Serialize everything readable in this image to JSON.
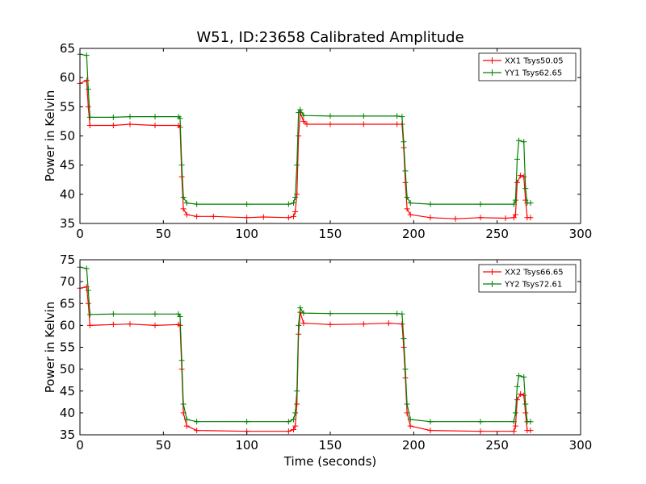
{
  "figure": {
    "title": "W51, ID:23658 Calibrated Amplitude",
    "background": "#ffffff"
  },
  "chart_data": [
    {
      "type": "line",
      "title": "W51, ID:23658 Calibrated Amplitude",
      "xlabel": "",
      "ylabel": "Power in Kelvin",
      "xlim": [
        0,
        300
      ],
      "ylim": [
        35,
        65
      ],
      "xticks": [
        0,
        50,
        100,
        150,
        200,
        250,
        300
      ],
      "yticks": [
        35,
        40,
        45,
        50,
        55,
        60,
        65
      ],
      "grid": false,
      "legend_position": "top-right",
      "marker": "+",
      "series": [
        {
          "name": "XX1 Tsys50.05",
          "color": "#ff0000",
          "points": [
            [
              0,
              59
            ],
            [
              4,
              59.5
            ],
            [
              5,
              55
            ],
            [
              6,
              51.8
            ],
            [
              20,
              51.8
            ],
            [
              30,
              52
            ],
            [
              45,
              51.8
            ],
            [
              59,
              51.8
            ],
            [
              60,
              51.5
            ],
            [
              61,
              43
            ],
            [
              62,
              37.5
            ],
            [
              64,
              36.5
            ],
            [
              70,
              36.2
            ],
            [
              80,
              36.2
            ],
            [
              100,
              36
            ],
            [
              110,
              36.1
            ],
            [
              125,
              36
            ],
            [
              128,
              36.2
            ],
            [
              129,
              37
            ],
            [
              130,
              40
            ],
            [
              131,
              50
            ],
            [
              132,
              54
            ],
            [
              134,
              52.5
            ],
            [
              136,
              52
            ],
            [
              150,
              52
            ],
            [
              170,
              52
            ],
            [
              190,
              52
            ],
            [
              193,
              52
            ],
            [
              194,
              48
            ],
            [
              195,
              42
            ],
            [
              196,
              37.5
            ],
            [
              198,
              36.5
            ],
            [
              210,
              36
            ],
            [
              225,
              35.8
            ],
            [
              240,
              36
            ],
            [
              255,
              35.9
            ],
            [
              260,
              36
            ],
            [
              261,
              36.5
            ],
            [
              262,
              42
            ],
            [
              264,
              43.2
            ],
            [
              266,
              43
            ],
            [
              267,
              39
            ],
            [
              268,
              36
            ],
            [
              270,
              36
            ]
          ]
        },
        {
          "name": "YY1 Tsys62.65",
          "color": "#008000",
          "points": [
            [
              0,
              64
            ],
            [
              4,
              63.8
            ],
            [
              5,
              58
            ],
            [
              6,
              53.2
            ],
            [
              20,
              53.2
            ],
            [
              30,
              53.3
            ],
            [
              45,
              53.3
            ],
            [
              59,
              53.3
            ],
            [
              60,
              53
            ],
            [
              61,
              45
            ],
            [
              62,
              39.5
            ],
            [
              64,
              38.5
            ],
            [
              70,
              38.3
            ],
            [
              100,
              38.3
            ],
            [
              125,
              38.3
            ],
            [
              128,
              38.5
            ],
            [
              129,
              39.5
            ],
            [
              130,
              45
            ],
            [
              131,
              54
            ],
            [
              132,
              54.5
            ],
            [
              134,
              53.5
            ],
            [
              150,
              53.4
            ],
            [
              170,
              53.4
            ],
            [
              190,
              53.4
            ],
            [
              193,
              53.3
            ],
            [
              194,
              49
            ],
            [
              195,
              44
            ],
            [
              196,
              39.5
            ],
            [
              198,
              38.5
            ],
            [
              210,
              38.3
            ],
            [
              240,
              38.3
            ],
            [
              260,
              38.3
            ],
            [
              261,
              39
            ],
            [
              262,
              46
            ],
            [
              263,
              49.2
            ],
            [
              266,
              49
            ],
            [
              267,
              41
            ],
            [
              268,
              38.5
            ],
            [
              270,
              38.5
            ]
          ]
        }
      ]
    },
    {
      "type": "line",
      "title": "",
      "xlabel": "Time (seconds)",
      "ylabel": "Power in Kelvin",
      "xlim": [
        0,
        300
      ],
      "ylim": [
        35,
        75
      ],
      "xticks": [
        0,
        50,
        100,
        150,
        200,
        250,
        300
      ],
      "yticks": [
        35,
        40,
        45,
        50,
        55,
        60,
        65,
        70,
        75
      ],
      "grid": false,
      "legend_position": "top-right",
      "marker": "+",
      "series": [
        {
          "name": "XX2 Tsys66.65",
          "color": "#ff0000",
          "points": [
            [
              0,
              68.5
            ],
            [
              4,
              68.8
            ],
            [
              5,
              65
            ],
            [
              6,
              60
            ],
            [
              20,
              60.2
            ],
            [
              30,
              60.3
            ],
            [
              45,
              60
            ],
            [
              59,
              60.2
            ],
            [
              60,
              60
            ],
            [
              61,
              50
            ],
            [
              62,
              40
            ],
            [
              64,
              37
            ],
            [
              70,
              36
            ],
            [
              100,
              35.8
            ],
            [
              125,
              35.8
            ],
            [
              128,
              36.2
            ],
            [
              129,
              37
            ],
            [
              130,
              42
            ],
            [
              131,
              58
            ],
            [
              132,
              63
            ],
            [
              134,
              60.5
            ],
            [
              150,
              60.2
            ],
            [
              170,
              60.3
            ],
            [
              185,
              60.5
            ],
            [
              193,
              60.3
            ],
            [
              194,
              55
            ],
            [
              195,
              48
            ],
            [
              196,
              40
            ],
            [
              198,
              37
            ],
            [
              210,
              36
            ],
            [
              240,
              35.8
            ],
            [
              260,
              35.8
            ],
            [
              261,
              37
            ],
            [
              262,
              43
            ],
            [
              264,
              44.3
            ],
            [
              266,
              44
            ],
            [
              267,
              40
            ],
            [
              268,
              36
            ],
            [
              270,
              36
            ]
          ]
        },
        {
          "name": "YY2 Tsys72.61",
          "color": "#008000",
          "points": [
            [
              0,
              73.3
            ],
            [
              4,
              73
            ],
            [
              5,
              68
            ],
            [
              6,
              62.5
            ],
            [
              20,
              62.6
            ],
            [
              45,
              62.6
            ],
            [
              59,
              62.6
            ],
            [
              60,
              62
            ],
            [
              61,
              52
            ],
            [
              62,
              42
            ],
            [
              64,
              38.5
            ],
            [
              70,
              38
            ],
            [
              100,
              38
            ],
            [
              125,
              38
            ],
            [
              128,
              38.5
            ],
            [
              129,
              40
            ],
            [
              130,
              45
            ],
            [
              131,
              60
            ],
            [
              132,
              64
            ],
            [
              134,
              62.8
            ],
            [
              150,
              62.7
            ],
            [
              190,
              62.7
            ],
            [
              193,
              62.6
            ],
            [
              194,
              57
            ],
            [
              195,
              50
            ],
            [
              196,
              42
            ],
            [
              198,
              38.5
            ],
            [
              210,
              38
            ],
            [
              240,
              38
            ],
            [
              260,
              38
            ],
            [
              261,
              40
            ],
            [
              262,
              46
            ],
            [
              263,
              48.5
            ],
            [
              266,
              48.2
            ],
            [
              267,
              42
            ],
            [
              268,
              38
            ],
            [
              270,
              38
            ]
          ]
        }
      ]
    }
  ]
}
